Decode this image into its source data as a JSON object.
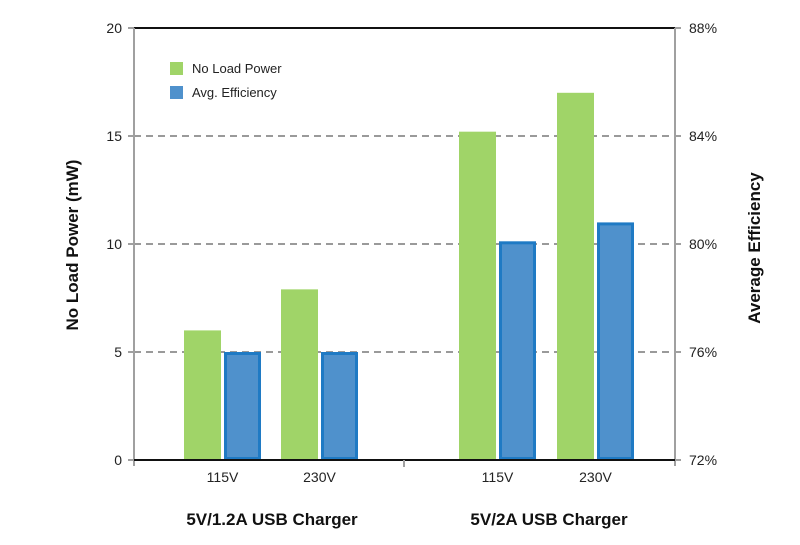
{
  "chart_data": {
    "type": "bar",
    "groups": [
      {
        "label": "5V/1.2A USB Charger",
        "categories": [
          "115V",
          "230V"
        ]
      },
      {
        "label": "5V/2A USB Charger",
        "categories": [
          "115V",
          "230V"
        ]
      }
    ],
    "series": [
      {
        "name": "No Load Power",
        "axis": "left",
        "color": "#a0d468",
        "values": [
          6.0,
          7.9,
          15.2,
          17.0
        ]
      },
      {
        "name": "Avg. Efficiency",
        "axis": "right",
        "color": "#4f91cc",
        "stroke": "#1f7ac4",
        "values": [
          76.0,
          76.0,
          80.1,
          80.8
        ]
      }
    ],
    "left_axis": {
      "title": "No Load Power (mW)",
      "ylim": [
        0,
        20
      ],
      "ticks": [
        0,
        5,
        10,
        15,
        20
      ],
      "tick_labels": [
        "0",
        "5",
        "10",
        "15",
        "20"
      ]
    },
    "right_axis": {
      "title": "Average Efficiency",
      "ylim": [
        72,
        88
      ],
      "ticks": [
        72,
        76,
        80,
        84,
        88
      ],
      "tick_labels": [
        "72%",
        "76%",
        "80%",
        "84%",
        "88%"
      ]
    },
    "grid": "dashed horizontal",
    "legend_position": "top-left"
  }
}
